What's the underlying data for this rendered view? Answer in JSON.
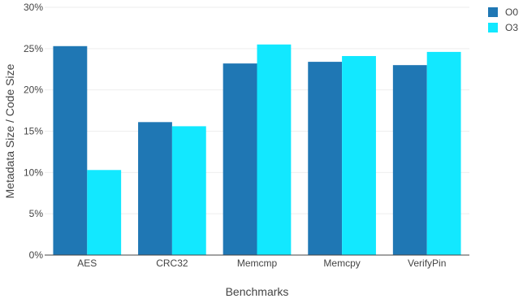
{
  "chart_data": {
    "type": "bar",
    "title": "",
    "xlabel": "Benchmarks",
    "ylabel": "Metadata Size / Code Size",
    "categories": [
      "AES",
      "CRC32",
      "Memcmp",
      "Memcpy",
      "VerifyPin"
    ],
    "series": [
      {
        "name": "O0",
        "values": [
          25.3,
          16.1,
          23.2,
          23.4,
          23.0
        ],
        "color": "#1f77b4"
      },
      {
        "name": "O3",
        "values": [
          10.3,
          15.6,
          25.5,
          24.1,
          24.6
        ],
        "color": "#12e8ff"
      }
    ],
    "ylim": [
      0,
      30
    ],
    "yticks": [
      0,
      5,
      10,
      15,
      20,
      25,
      30
    ],
    "ytick_suffix": "%",
    "grid": true,
    "legend": "top-right"
  }
}
